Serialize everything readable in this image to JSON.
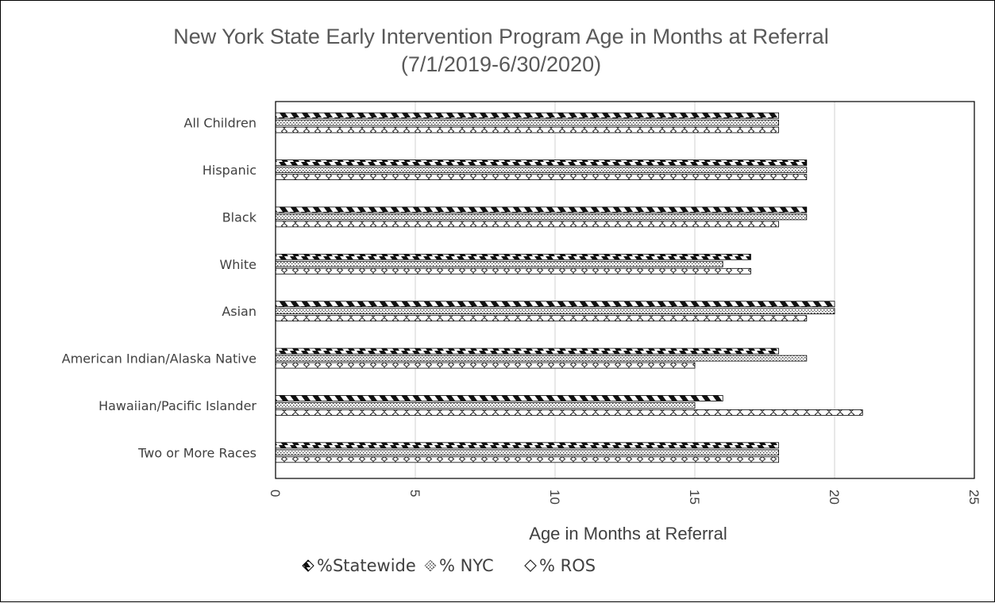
{
  "chart_data": {
    "type": "bar",
    "orientation": "horizontal",
    "title": "New York State Early Intervention  Program Age in Months  at Referral",
    "subtitle": "(7/1/2019-6/30/2020)",
    "xlabel": "Age in Months at Referral",
    "ylabel": "",
    "xlim": [
      0,
      25
    ],
    "x_ticks": [
      "0",
      "5",
      "10",
      "15",
      "20",
      "25"
    ],
    "grid": "vertical",
    "legend_position": "bottom",
    "categories": [
      "All Children",
      "Hispanic",
      "Black",
      "White",
      "Asian",
      "American Indian/Alaska Native",
      "Hawaiian/Pacific Islander",
      "Two or More Races"
    ],
    "series": [
      {
        "name": "%Statewide",
        "values": [
          18,
          19,
          19,
          17,
          20,
          18,
          16,
          18
        ]
      },
      {
        "name": "% NYC",
        "values": [
          18,
          19,
          19,
          16,
          20,
          19,
          15,
          18
        ]
      },
      {
        "name": "% ROS",
        "values": [
          18,
          19,
          18,
          17,
          19,
          15,
          21,
          18
        ]
      }
    ],
    "legend": [
      "%Statewide",
      "% NYC",
      "% ROS"
    ]
  }
}
